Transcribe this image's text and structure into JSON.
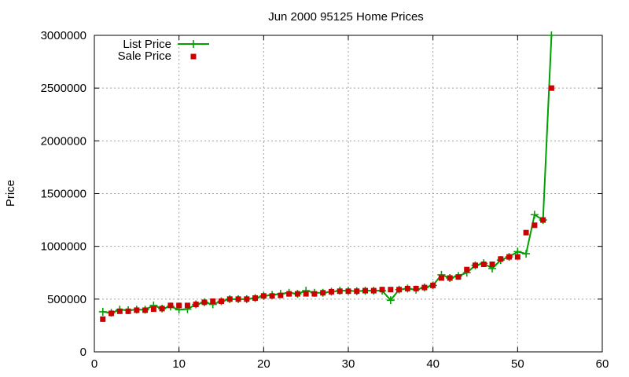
{
  "chart_data": {
    "type": "line",
    "title": "Jun 2000 95125 Home Prices",
    "xlabel": "",
    "ylabel": "Price",
    "xlim": [
      0,
      60
    ],
    "ylim": [
      0,
      3000000
    ],
    "xticks": [
      0,
      10,
      20,
      30,
      40,
      50,
      60
    ],
    "yticks": [
      0,
      500000,
      1000000,
      1500000,
      2000000,
      2500000,
      3000000
    ],
    "grid": true,
    "legend_position": "top-left",
    "series": [
      {
        "name": "List Price",
        "style": "lines+points",
        "marker": "plus",
        "color": "#00a000",
        "x": [
          1,
          2,
          3,
          4,
          5,
          6,
          7,
          8,
          9,
          10,
          11,
          12,
          13,
          14,
          15,
          16,
          17,
          18,
          19,
          20,
          21,
          22,
          23,
          24,
          25,
          26,
          27,
          28,
          29,
          30,
          31,
          32,
          33,
          34,
          35,
          36,
          37,
          38,
          39,
          40,
          41,
          42,
          43,
          44,
          45,
          46,
          47,
          48,
          49,
          50,
          51,
          52,
          53,
          54
        ],
        "y": [
          380000,
          370000,
          400000,
          395000,
          400000,
          400000,
          440000,
          410000,
          430000,
          400000,
          405000,
          450000,
          470000,
          450000,
          480000,
          500000,
          500000,
          500000,
          510000,
          530000,
          540000,
          550000,
          560000,
          550000,
          580000,
          560000,
          560000,
          570000,
          580000,
          580000,
          575000,
          580000,
          580000,
          580000,
          490000,
          590000,
          600000,
          590000,
          610000,
          630000,
          730000,
          700000,
          720000,
          750000,
          820000,
          840000,
          790000,
          870000,
          900000,
          950000,
          930000,
          1300000,
          1250000,
          3000000
        ]
      },
      {
        "name": "Sale Price",
        "style": "points",
        "marker": "square",
        "color": "#cc0000",
        "x": [
          1,
          2,
          3,
          4,
          5,
          6,
          7,
          8,
          9,
          10,
          11,
          12,
          13,
          14,
          15,
          16,
          17,
          18,
          19,
          20,
          21,
          22,
          23,
          24,
          25,
          26,
          27,
          28,
          29,
          30,
          31,
          32,
          33,
          34,
          35,
          36,
          37,
          38,
          39,
          40,
          41,
          42,
          43,
          44,
          45,
          46,
          47,
          48,
          49,
          50,
          51,
          52,
          53,
          54
        ],
        "y": [
          310000,
          365000,
          385000,
          385000,
          395000,
          395000,
          405000,
          410000,
          440000,
          440000,
          440000,
          450000,
          470000,
          480000,
          480000,
          500000,
          500000,
          500000,
          510000,
          530000,
          530000,
          535000,
          550000,
          550000,
          550000,
          550000,
          560000,
          570000,
          575000,
          575000,
          575000,
          580000,
          580000,
          590000,
          590000,
          590000,
          600000,
          600000,
          610000,
          630000,
          700000,
          700000,
          710000,
          780000,
          820000,
          830000,
          830000,
          880000,
          900000,
          900000,
          1130000,
          1200000,
          1250000,
          2500000
        ]
      }
    ]
  }
}
